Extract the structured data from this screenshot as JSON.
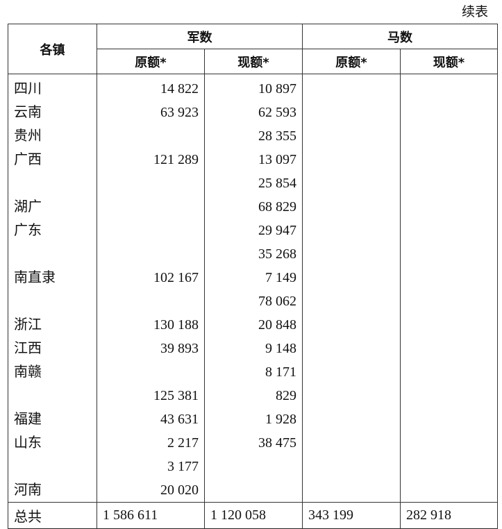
{
  "continued_label": "续表",
  "headers": {
    "town": "各镇",
    "troops": "军数",
    "horses": "马数",
    "original": "原额*",
    "current": "现额*"
  },
  "rows": [
    {
      "town": "四川",
      "troops_original": "14 822",
      "troops_current": "10 897"
    },
    {
      "town": "云南",
      "troops_original": "63 923",
      "troops_current": "62 593"
    },
    {
      "town": "贵州",
      "troops_original": "",
      "troops_current": "28 355"
    },
    {
      "town": "广西",
      "troops_original": "121 289",
      "troops_current": "13 097"
    },
    {
      "town": "",
      "troops_original": "",
      "troops_current": "25 854"
    },
    {
      "town": "湖广",
      "troops_original": "",
      "troops_current": "68 829"
    },
    {
      "town": "广东",
      "troops_original": "",
      "troops_current": "29 947"
    },
    {
      "town": "",
      "troops_original": "",
      "troops_current": "35 268"
    },
    {
      "town": "南直隶",
      "troops_original": "102 167",
      "troops_current": "7 149"
    },
    {
      "town": "",
      "troops_original": "",
      "troops_current": "78 062"
    },
    {
      "town": "浙江",
      "troops_original": "130 188",
      "troops_current": "20 848"
    },
    {
      "town": "江西",
      "troops_original": "39 893",
      "troops_current": "9 148"
    },
    {
      "town": "南赣",
      "troops_original": "",
      "troops_current": "8 171"
    },
    {
      "town": "",
      "troops_original": "125 381",
      "troops_current": "829"
    },
    {
      "town": "福建",
      "troops_original": "43 631",
      "troops_current": "1 928"
    },
    {
      "town": "山东",
      "troops_original": "2 217",
      "troops_current": "38 475"
    },
    {
      "town": "",
      "troops_original": "3 177",
      "troops_current": ""
    },
    {
      "town": "河南",
      "troops_original": "20 020",
      "troops_current": ""
    }
  ],
  "total": {
    "label": "总共",
    "troops_original": "1 586 611",
    "troops_current": "1 120 058",
    "horses_original": "343 199",
    "horses_current": "282 918"
  }
}
